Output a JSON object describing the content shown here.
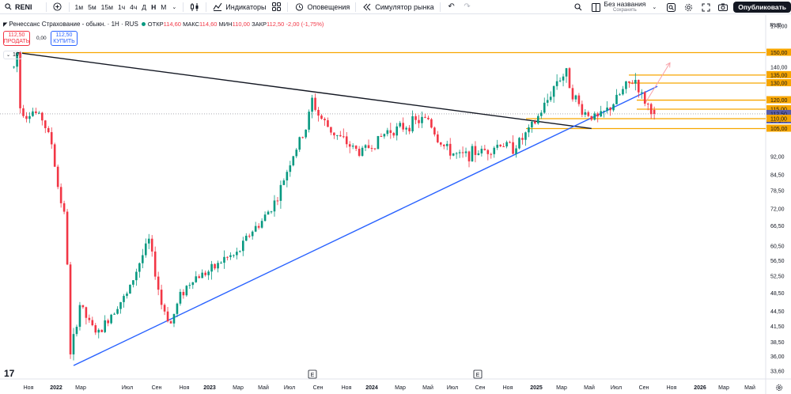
{
  "toolbar": {
    "symbol": "RENI",
    "intervals": [
      "1м",
      "5м",
      "15м",
      "1ч",
      "4ч",
      "Д",
      "Н",
      "М"
    ],
    "active_interval": "Н",
    "indicators_label": "Индикаторы",
    "alerts_label": "Оповещения",
    "replay_label": "Симулятор рынка",
    "layout_name": "Без названия",
    "layout_status": "Сохранить",
    "publish_label": "Опубликовать"
  },
  "legend": {
    "title": "Ренессанс Страхование - обыкн. · 1Н · RUS",
    "open_label": "ОТКР",
    "open": "114,60",
    "high_label": "МАКС",
    "high": "114,60",
    "low_label": "МИН",
    "low": "110,00",
    "close_label": "ЗАКР",
    "close": "112,50",
    "change": "-2,00 (-1,75%)",
    "sell_price": "112,50",
    "sell_label": "ПРОДАТЬ",
    "spread": "0,00",
    "buy_price": "112,50",
    "buy_label": "КУПИТЬ",
    "indicator_count": "10"
  },
  "price_axis": {
    "currency": "RUB",
    "labels": [
      "170,00",
      "150,00",
      "140,00",
      "135,00",
      "130,00",
      "120,00",
      "115,00",
      "112,50",
      "1d 17h",
      "110,00",
      "105,00",
      "92,00",
      "84,50",
      "78,50",
      "72,00",
      "66,50",
      "60,50",
      "56,50",
      "52,50",
      "48,50",
      "44,50",
      "41,50",
      "38,50",
      "36,00",
      "33,60"
    ],
    "highlight_levels": [
      "150,00",
      "135,00",
      "130,00",
      "120,00",
      "115,00",
      "110,00",
      "105,00"
    ],
    "current_price": "112,50",
    "countdown": "1d 17h"
  },
  "time_axis": {
    "labels": [
      "Ноя",
      "2022",
      "Мар",
      "Июл",
      "Сен",
      "Ноя",
      "2023",
      "Мар",
      "Май",
      "Июл",
      "Сен",
      "Ноя",
      "2024",
      "Мар",
      "Май",
      "Июл",
      "Сен",
      "Ноя",
      "2025",
      "Мар",
      "Май",
      "Июл",
      "Сен",
      "Ноя",
      "2026",
      "Мар",
      "Май"
    ],
    "events": [
      "E",
      "E"
    ]
  },
  "colors": {
    "up": "#089981",
    "down": "#f23645",
    "level": "#f7a600",
    "trendline_down": "#131722",
    "trendline_up": "#2962ff",
    "current_price_bg": "#5a5ea8",
    "arrow": "#f7a1a8"
  },
  "chart_data": {
    "type": "candlestick",
    "title": "Ренессанс Страхование - обыкн. · 1Н · RUS",
    "currency": "RUB",
    "yscale": "log",
    "ylim": [
      33,
      175
    ],
    "x_range": [
      "2021-10",
      "2026-06"
    ],
    "series": [
      {
        "name": "RENI",
        "price_path": [
          [
            "2021-10-25",
            140
          ],
          [
            "2021-11-01",
            150
          ],
          [
            "2021-11-08",
            116
          ],
          [
            "2021-11-22",
            112
          ],
          [
            "2021-12-06",
            114
          ],
          [
            "2021-12-27",
            110
          ],
          [
            "2022-01-17",
            98
          ],
          [
            "2022-01-31",
            80
          ],
          [
            "2022-02-14",
            70
          ],
          [
            "2022-02-21",
            56
          ],
          [
            "2022-02-28",
            36
          ],
          [
            "2022-03-21",
            46
          ],
          [
            "2022-04-11",
            42
          ],
          [
            "2022-05-02",
            40
          ],
          [
            "2022-05-23",
            43
          ],
          [
            "2022-06-13",
            46
          ],
          [
            "2022-07-04",
            48
          ],
          [
            "2022-08-01",
            56
          ],
          [
            "2022-08-22",
            62
          ],
          [
            "2022-09-19",
            46
          ],
          [
            "2022-10-10",
            42
          ],
          [
            "2022-10-31",
            48
          ],
          [
            "2022-11-28",
            52
          ],
          [
            "2023-01-09",
            54
          ],
          [
            "2023-02-06",
            57
          ],
          [
            "2023-03-06",
            58
          ],
          [
            "2023-04-03",
            64
          ],
          [
            "2023-05-01",
            68
          ],
          [
            "2023-06-05",
            76
          ],
          [
            "2023-07-03",
            90
          ],
          [
            "2023-08-07",
            105
          ],
          [
            "2023-08-21",
            120
          ],
          [
            "2023-09-04",
            112
          ],
          [
            "2023-10-02",
            104
          ],
          [
            "2023-11-06",
            98
          ],
          [
            "2023-12-04",
            94
          ],
          [
            "2024-01-08",
            98
          ],
          [
            "2024-02-05",
            104
          ],
          [
            "2024-03-04",
            105
          ],
          [
            "2024-04-01",
            108
          ],
          [
            "2024-05-06",
            110
          ],
          [
            "2024-05-27",
            100
          ],
          [
            "2024-06-17",
            95
          ],
          [
            "2024-07-15",
            92
          ],
          [
            "2024-08-19",
            94
          ],
          [
            "2024-09-16",
            95
          ],
          [
            "2024-10-14",
            98
          ],
          [
            "2024-11-11",
            96
          ],
          [
            "2024-12-02",
            100
          ],
          [
            "2024-12-30",
            108
          ],
          [
            "2025-01-27",
            120
          ],
          [
            "2025-02-17",
            132
          ],
          [
            "2025-03-10",
            136
          ],
          [
            "2025-03-24",
            124
          ],
          [
            "2025-04-14",
            114
          ],
          [
            "2025-05-19",
            110
          ],
          [
            "2025-06-16",
            116
          ],
          [
            "2025-07-21",
            128
          ],
          [
            "2025-08-11",
            132
          ],
          [
            "2025-08-25",
            122
          ],
          [
            "2025-09-15",
            114.6
          ],
          [
            "2025-09-22",
            112.5
          ]
        ]
      }
    ],
    "horizontal_levels": [
      150,
      135,
      130,
      120,
      115,
      110,
      105
    ],
    "trendlines": [
      {
        "name": "down",
        "from": [
          "2021-11-01",
          150
        ],
        "to": [
          "2025-05-05",
          105
        ]
      },
      {
        "name": "up",
        "from": [
          "2022-03-07",
          34.5
        ],
        "to": [
          "2025-09-29",
          128
        ]
      }
    ],
    "annotation_arrow": {
      "from": [
        "2025-09-01",
        118
      ],
      "to": [
        "2025-10-27",
        143
      ]
    },
    "last": {
      "open": 114.6,
      "high": 114.6,
      "low": 110.0,
      "close": 112.5
    }
  }
}
